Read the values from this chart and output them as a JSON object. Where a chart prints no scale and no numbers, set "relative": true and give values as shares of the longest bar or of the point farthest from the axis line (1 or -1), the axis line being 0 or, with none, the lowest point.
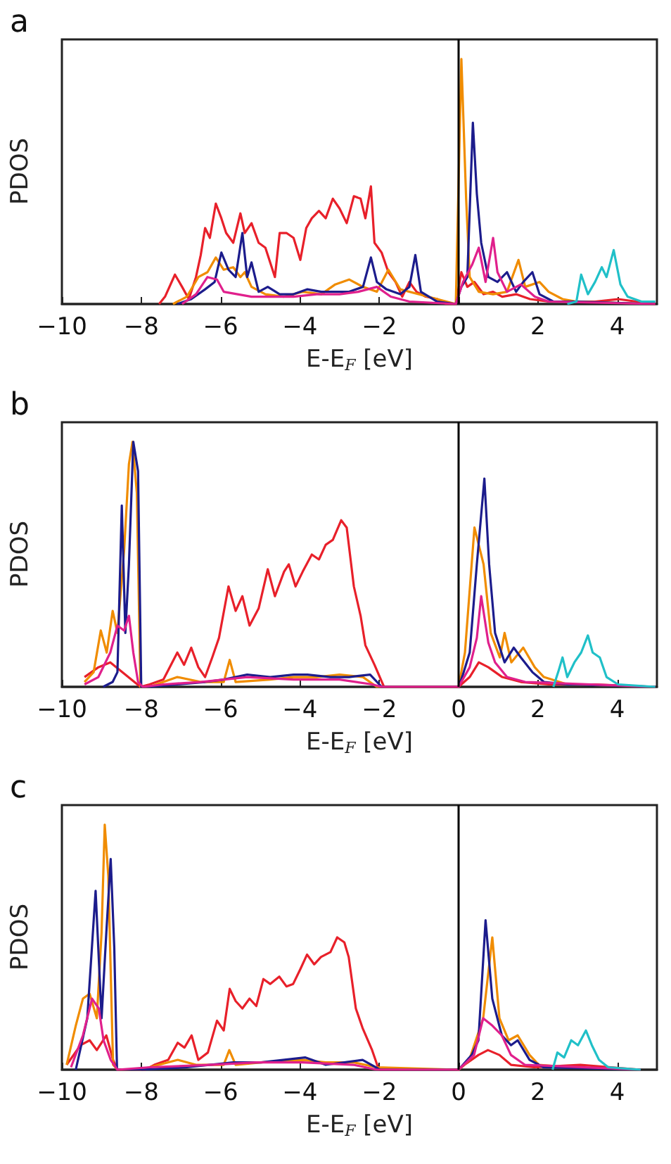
{
  "chart_data": [
    {
      "type": "line",
      "title": "a",
      "xlabel": "E-E$_{F}$ [eV]",
      "ylabel": "PDOS",
      "relative": true,
      "xlim": [
        -10,
        5
      ],
      "xticks": [
        -10,
        -8,
        -6,
        -4,
        -2,
        0,
        2,
        4
      ],
      "marker": "none",
      "ref_lines": [
        {
          "axis": "x",
          "value": 0,
          "color": "#000000"
        }
      ],
      "series": [
        {
          "color": "#e8202a",
          "x": [
            -7.55,
            -7.4,
            -7.15,
            -6.97,
            -6.8,
            -6.62,
            -6.5,
            -6.39,
            -6.27,
            -6.12,
            -5.98,
            -5.86,
            -5.68,
            -5.5,
            -5.39,
            -5.22,
            -5.04,
            -4.87,
            -4.63,
            -4.51,
            -4.34,
            -4.16,
            -3.99,
            -3.84,
            -3.7,
            -3.52,
            -3.35,
            -3.17,
            -3.0,
            -2.82,
            -2.64,
            -2.47,
            -2.35,
            -2.21,
            -2.12,
            -1.94,
            -1.77,
            -1.59,
            -1.42,
            -1.24,
            -1.06,
            -0.83,
            -0.54,
            -0.3,
            -0.07,
            0.07,
            0.22,
            0.4,
            0.63,
            0.87,
            1.1,
            1.45,
            1.8,
            2.27,
            2.85,
            3.44,
            4.02,
            4.96
          ],
          "values": [
            0,
            0.03,
            0.12,
            0.07,
            0.02,
            0.11,
            0.2,
            0.31,
            0.27,
            0.41,
            0.35,
            0.29,
            0.25,
            0.37,
            0.29,
            0.33,
            0.25,
            0.23,
            0.11,
            0.29,
            0.29,
            0.27,
            0.18,
            0.31,
            0.35,
            0.38,
            0.35,
            0.43,
            0.39,
            0.33,
            0.44,
            0.43,
            0.35,
            0.48,
            0.25,
            0.21,
            0.13,
            0.09,
            0.03,
            0.09,
            0.05,
            0.03,
            0.02,
            0,
            0,
            0.13,
            0.07,
            0.09,
            0.04,
            0.05,
            0.03,
            0.04,
            0.02,
            0.01,
            0.01,
            0.01,
            0.02,
            0
          ]
        },
        {
          "color": "#f08c00",
          "x": [
            -7.2,
            -6.85,
            -6.56,
            -6.33,
            -6.12,
            -5.92,
            -5.68,
            -5.5,
            -5.39,
            -5.22,
            -4.87,
            -4.4,
            -3.93,
            -3.46,
            -3.11,
            -2.76,
            -2.41,
            -2.06,
            -1.77,
            -1.47,
            -1.01,
            -0.54,
            -0.07,
            0.07,
            0.19,
            0.28,
            0.51,
            0.87,
            1.22,
            1.51,
            1.68,
            2.04,
            2.27,
            2.62,
            2.97,
            4.96
          ],
          "values": [
            0,
            0.03,
            0.11,
            0.13,
            0.19,
            0.14,
            0.15,
            0.11,
            0.13,
            0.07,
            0.04,
            0.03,
            0.05,
            0.04,
            0.08,
            0.1,
            0.07,
            0.05,
            0.14,
            0.06,
            0.04,
            0.02,
            0,
            1,
            0.43,
            0.11,
            0.05,
            0.04,
            0.05,
            0.18,
            0.07,
            0.09,
            0.05,
            0.02,
            0.01,
            0
          ]
        },
        {
          "color": "#1c1c8c",
          "x": [
            -7.09,
            -6.74,
            -6.39,
            -6.15,
            -5.98,
            -5.8,
            -5.62,
            -5.45,
            -5.33,
            -5.22,
            -5.04,
            -4.81,
            -4.51,
            -4.16,
            -3.81,
            -3.46,
            -3.11,
            -2.76,
            -2.41,
            -2.21,
            -2.06,
            -1.82,
            -1.47,
            -1.24,
            -1.09,
            -0.95,
            -0.54,
            -0.07,
            0.07,
            0.22,
            0.36,
            0.46,
            0.57,
            0.75,
            0.98,
            1.22,
            1.45,
            1.63,
            1.86,
            2.04,
            2.39,
            2.97,
            4.96
          ],
          "values": [
            0,
            0.02,
            0.06,
            0.09,
            0.21,
            0.14,
            0.11,
            0.29,
            0.11,
            0.17,
            0.05,
            0.07,
            0.04,
            0.04,
            0.06,
            0.05,
            0.05,
            0.05,
            0.07,
            0.19,
            0.09,
            0.06,
            0.04,
            0.07,
            0.2,
            0.05,
            0.01,
            0,
            0.07,
            0.11,
            0.74,
            0.45,
            0.25,
            0.11,
            0.09,
            0.13,
            0.05,
            0.09,
            0.13,
            0.04,
            0.01,
            0.01,
            0
          ]
        },
        {
          "color": "#e0208c",
          "x": [
            -6.97,
            -6.62,
            -6.33,
            -6.09,
            -5.92,
            -5.57,
            -5.22,
            -4.75,
            -4.16,
            -3.58,
            -3.0,
            -2.53,
            -2.06,
            -1.71,
            -1.24,
            -0.07,
            0.11,
            0.34,
            0.51,
            0.68,
            0.87,
            0.98,
            1.22,
            1.57,
            1.92,
            2.27,
            4.96
          ],
          "values": [
            0,
            0.04,
            0.11,
            0.1,
            0.05,
            0.04,
            0.03,
            0.03,
            0.03,
            0.04,
            0.04,
            0.05,
            0.07,
            0.03,
            0.01,
            0,
            0.09,
            0.16,
            0.23,
            0.09,
            0.27,
            0.13,
            0.05,
            0.08,
            0.03,
            0.01,
            0
          ]
        },
        {
          "color": "#20c0c8",
          "x": [
            2.74,
            2.97,
            3.09,
            3.26,
            3.44,
            3.61,
            3.73,
            3.91,
            4.08,
            4.26,
            4.61,
            4.96
          ],
          "values": [
            0,
            0.01,
            0.12,
            0.04,
            0.09,
            0.15,
            0.11,
            0.22,
            0.08,
            0.03,
            0.01,
            0.01
          ]
        }
      ]
    },
    {
      "type": "line",
      "title": "b",
      "xlabel": "E-E$_{F}$ [eV]",
      "ylabel": "PDOS",
      "relative": true,
      "xlim": [
        -10,
        5
      ],
      "xticks": [
        -10,
        -8,
        -6,
        -4,
        -2,
        0,
        2,
        4
      ],
      "marker": "none",
      "ref_lines": [
        {
          "axis": "x",
          "value": 0,
          "color": "#000000"
        }
      ],
      "series": [
        {
          "color": "#e8202a",
          "x": [
            -9.43,
            -9.08,
            -8.78,
            -8.55,
            -8.25,
            -8.02,
            -7.79,
            -7.44,
            -7.09,
            -6.92,
            -6.74,
            -6.56,
            -6.39,
            -6.21,
            -6.04,
            -5.8,
            -5.62,
            -5.45,
            -5.27,
            -5.04,
            -4.81,
            -4.63,
            -4.4,
            -4.28,
            -4.11,
            -3.93,
            -3.7,
            -3.52,
            -3.35,
            -3.17,
            -2.96,
            -2.82,
            -2.64,
            -2.47,
            -2.35,
            -2.12,
            -1.88,
            0,
            0.28,
            0.51,
            0.75,
            1.1,
            1.57,
            2.27,
            3.44,
            4.96
          ],
          "values": [
            0.04,
            0.08,
            0.1,
            0.07,
            0.03,
            0,
            0.01,
            0.03,
            0.14,
            0.09,
            0.16,
            0.08,
            0.04,
            0.12,
            0.2,
            0.41,
            0.31,
            0.37,
            0.25,
            0.32,
            0.48,
            0.37,
            0.47,
            0.5,
            0.41,
            0.47,
            0.54,
            0.52,
            0.58,
            0.6,
            0.68,
            0.65,
            0.41,
            0.29,
            0.17,
            0.09,
            0,
            0,
            0.04,
            0.1,
            0.08,
            0.04,
            0.02,
            0.01,
            0.01,
            0
          ]
        },
        {
          "color": "#f08c00",
          "x": [
            -9.43,
            -9.2,
            -9.02,
            -8.87,
            -8.72,
            -8.6,
            -8.43,
            -8.31,
            -8.22,
            -8.11,
            -8.02,
            -7.79,
            -7.44,
            -7.09,
            -6.5,
            -5.92,
            -5.77,
            -5.62,
            -4.75,
            -4.16,
            -3.58,
            -3.0,
            -2.41,
            -2.06,
            0,
            0.16,
            0.4,
            0.63,
            0.81,
            1.04,
            1.16,
            1.33,
            1.63,
            1.92,
            2.15,
            2.74,
            4.96
          ],
          "values": [
            0.02,
            0.06,
            0.23,
            0.14,
            0.31,
            0.22,
            0.56,
            0.91,
            1,
            0.79,
            0,
            0,
            0.02,
            0.04,
            0.02,
            0.02,
            0.11,
            0.02,
            0.03,
            0.04,
            0.04,
            0.05,
            0.04,
            0,
            0,
            0.14,
            0.65,
            0.5,
            0.22,
            0.12,
            0.22,
            0.1,
            0.16,
            0.08,
            0.04,
            0.01,
            0
          ]
        },
        {
          "color": "#1c1c8c",
          "x": [
            -8.96,
            -8.72,
            -8.6,
            -8.49,
            -8.4,
            -8.31,
            -8.2,
            -8.08,
            -8.0,
            -7.79,
            -7.09,
            -6.39,
            -5.92,
            -5.33,
            -4.75,
            -4.16,
            -3.81,
            -3.23,
            -2.76,
            -2.23,
            -1.94,
            0,
            0.11,
            0.28,
            0.46,
            0.65,
            0.77,
            0.92,
            1.16,
            1.39,
            1.57,
            1.86,
            2.15,
            2.74,
            4.96
          ],
          "values": [
            0,
            0.02,
            0.06,
            0.74,
            0.22,
            0.5,
            1,
            0.88,
            0,
            0,
            0.01,
            0.02,
            0.03,
            0.05,
            0.04,
            0.05,
            0.05,
            0.04,
            0.04,
            0.05,
            0,
            0,
            0.05,
            0.14,
            0.5,
            0.85,
            0.5,
            0.22,
            0.1,
            0.16,
            0.12,
            0.06,
            0.02,
            0.01,
            0
          ]
        },
        {
          "color": "#e0208c",
          "x": [
            -9.43,
            -9.08,
            -8.78,
            -8.6,
            -8.43,
            -8.31,
            -8.2,
            -8.08,
            -7.96,
            -7.44,
            -6.5,
            -5.33,
            -4.16,
            -3.0,
            -2.18,
            -1.94,
            0,
            0.28,
            0.46,
            0.57,
            0.75,
            0.92,
            1.22,
            1.68,
            4.96
          ],
          "values": [
            0.01,
            0.04,
            0.14,
            0.25,
            0.23,
            0.29,
            0.14,
            0.02,
            0,
            0.01,
            0.02,
            0.04,
            0.03,
            0.03,
            0.01,
            0,
            0,
            0.08,
            0.2,
            0.37,
            0.18,
            0.1,
            0.04,
            0.02,
            0
          ]
        },
        {
          "color": "#20c0c8",
          "x": [
            2.39,
            2.51,
            2.62,
            2.74,
            2.92,
            3.09,
            3.26,
            3.38,
            3.56,
            3.73,
            4.02,
            4.96
          ],
          "values": [
            0,
            0.06,
            0.12,
            0.04,
            0.1,
            0.14,
            0.21,
            0.14,
            0.12,
            0.04,
            0.01,
            0
          ]
        }
      ]
    },
    {
      "type": "line",
      "title": "c",
      "xlabel": "E-E$_{F}$ [eV]",
      "ylabel": "PDOS",
      "relative": true,
      "xlim": [
        -10,
        5
      ],
      "xticks": [
        -10,
        -8,
        -6,
        -4,
        -2,
        0,
        2,
        4
      ],
      "marker": "none",
      "ref_lines": [
        {
          "axis": "x",
          "value": 0,
          "color": "#000000"
        }
      ],
      "series": [
        {
          "color": "#e8202a",
          "x": [
            -9.88,
            -9.53,
            -9.3,
            -9.12,
            -8.88,
            -8.71,
            -8.6,
            -7.9,
            -7.67,
            -7.32,
            -7.08,
            -6.91,
            -6.73,
            -6.56,
            -6.32,
            -6.09,
            -5.92,
            -5.77,
            -5.62,
            -5.45,
            -5.27,
            -5.1,
            -4.92,
            -4.75,
            -4.52,
            -4.34,
            -4.17,
            -3.99,
            -3.82,
            -3.64,
            -3.47,
            -3.23,
            -3.06,
            -2.88,
            -2.77,
            -2.59,
            -2.42,
            -2.18,
            -2.01,
            0,
            0.15,
            0.5,
            0.74,
            1.03,
            1.32,
            1.9,
            3.07,
            4.59
          ],
          "values": [
            0.02,
            0.1,
            0.12,
            0.08,
            0.14,
            0.04,
            0,
            0,
            0.02,
            0.04,
            0.11,
            0.09,
            0.14,
            0.04,
            0.07,
            0.2,
            0.16,
            0.33,
            0.28,
            0.25,
            0.29,
            0.26,
            0.37,
            0.35,
            0.38,
            0.34,
            0.35,
            0.41,
            0.47,
            0.43,
            0.46,
            0.48,
            0.54,
            0.52,
            0.46,
            0.25,
            0.17,
            0.08,
            0,
            0,
            0.02,
            0.06,
            0.08,
            0.06,
            0.02,
            0.01,
            0.02,
            0
          ]
        },
        {
          "color": "#f08c00",
          "x": [
            -9.88,
            -9.65,
            -9.47,
            -9.3,
            -9.12,
            -9.0,
            -8.92,
            -8.83,
            -8.71,
            -8.6,
            -8.02,
            -7.55,
            -7.08,
            -6.62,
            -5.92,
            -5.78,
            -5.62,
            -4.98,
            -3.93,
            -3.35,
            -2.65,
            -2.07,
            0,
            0.27,
            0.62,
            0.85,
            1.03,
            1.26,
            1.49,
            1.79,
            2.02,
            2.84,
            4.59
          ],
          "values": [
            0.02,
            0.18,
            0.29,
            0.31,
            0.21,
            0.56,
            1,
            0.79,
            0.02,
            0,
            0,
            0.02,
            0.04,
            0.02,
            0.02,
            0.08,
            0.02,
            0.03,
            0.04,
            0.03,
            0.03,
            0.01,
            0,
            0.04,
            0.21,
            0.54,
            0.21,
            0.12,
            0.14,
            0.06,
            0.02,
            0.01,
            0
          ]
        },
        {
          "color": "#1c1c8c",
          "x": [
            -9.65,
            -9.36,
            -9.15,
            -9.0,
            -8.88,
            -8.77,
            -8.68,
            -8.61,
            -8.02,
            -6.85,
            -5.68,
            -4.98,
            -3.87,
            -3.35,
            -2.42,
            -1.98,
            0,
            0.33,
            0.5,
            0.68,
            0.85,
            1.09,
            1.32,
            1.49,
            1.79,
            2.14,
            4.59
          ],
          "values": [
            0,
            0.21,
            0.73,
            0.21,
            0.56,
            0.86,
            0.5,
            0,
            0,
            0.01,
            0.03,
            0.03,
            0.05,
            0.02,
            0.04,
            0,
            0,
            0.06,
            0.12,
            0.61,
            0.29,
            0.14,
            0.1,
            0.12,
            0.04,
            0.01,
            0
          ]
        },
        {
          "color": "#e0208c",
          "x": [
            -9.77,
            -9.47,
            -9.24,
            -9.07,
            -8.95,
            -8.77,
            -8.6,
            -7.78,
            -6.26,
            -5.1,
            -3.93,
            -2.65,
            -2.07,
            0,
            0.39,
            0.62,
            0.85,
            1.09,
            1.32,
            1.67,
            4.59
          ],
          "values": [
            0.01,
            0.14,
            0.29,
            0.25,
            0.12,
            0.04,
            0,
            0.01,
            0.02,
            0.03,
            0.03,
            0.02,
            0,
            0,
            0.06,
            0.21,
            0.18,
            0.14,
            0.06,
            0.02,
            0
          ]
        },
        {
          "color": "#20c0c8",
          "x": [
            2.37,
            2.49,
            2.66,
            2.84,
            3.01,
            3.21,
            3.36,
            3.54,
            3.77,
            4.59
          ],
          "values": [
            0,
            0.07,
            0.05,
            0.12,
            0.1,
            0.16,
            0.1,
            0.04,
            0.01,
            0
          ]
        }
      ]
    }
  ]
}
